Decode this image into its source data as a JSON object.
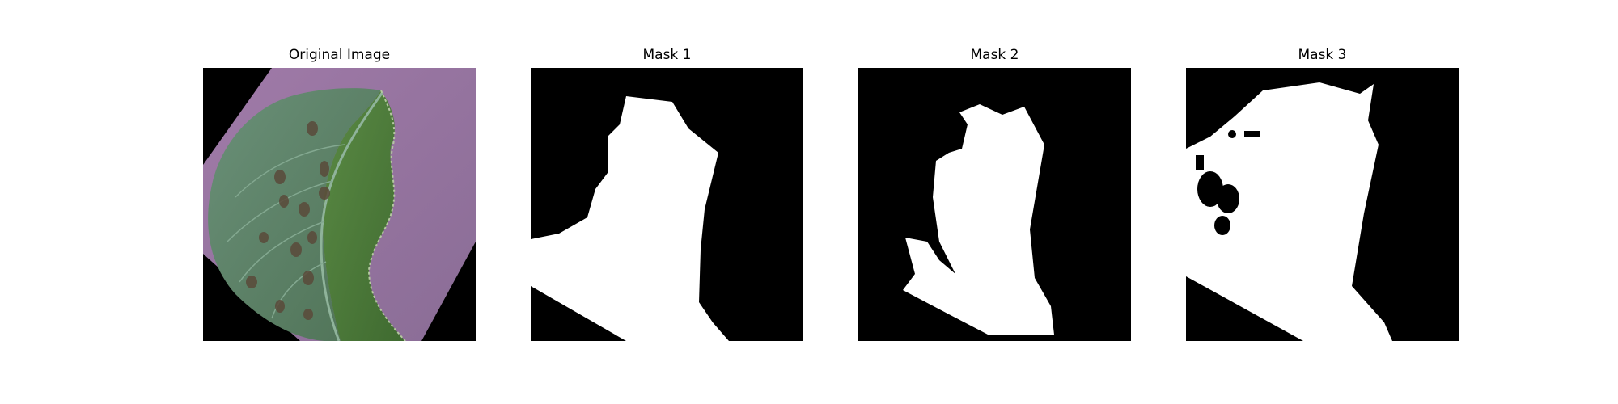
{
  "figure": {
    "panels": [
      {
        "title": "Original Image",
        "kind": "photo",
        "subject": "leaf"
      },
      {
        "title": "Mask 1",
        "kind": "mask"
      },
      {
        "title": "Mask 2",
        "kind": "mask"
      },
      {
        "title": "Mask 3",
        "kind": "mask"
      }
    ]
  },
  "colors": {
    "page_background": "#ffffff",
    "mask_background": "#000000",
    "mask_foreground": "#ffffff",
    "photo_background": "#8e6f98",
    "leaf_left": "#5d8466",
    "leaf_right": "#4f7a3c"
  }
}
